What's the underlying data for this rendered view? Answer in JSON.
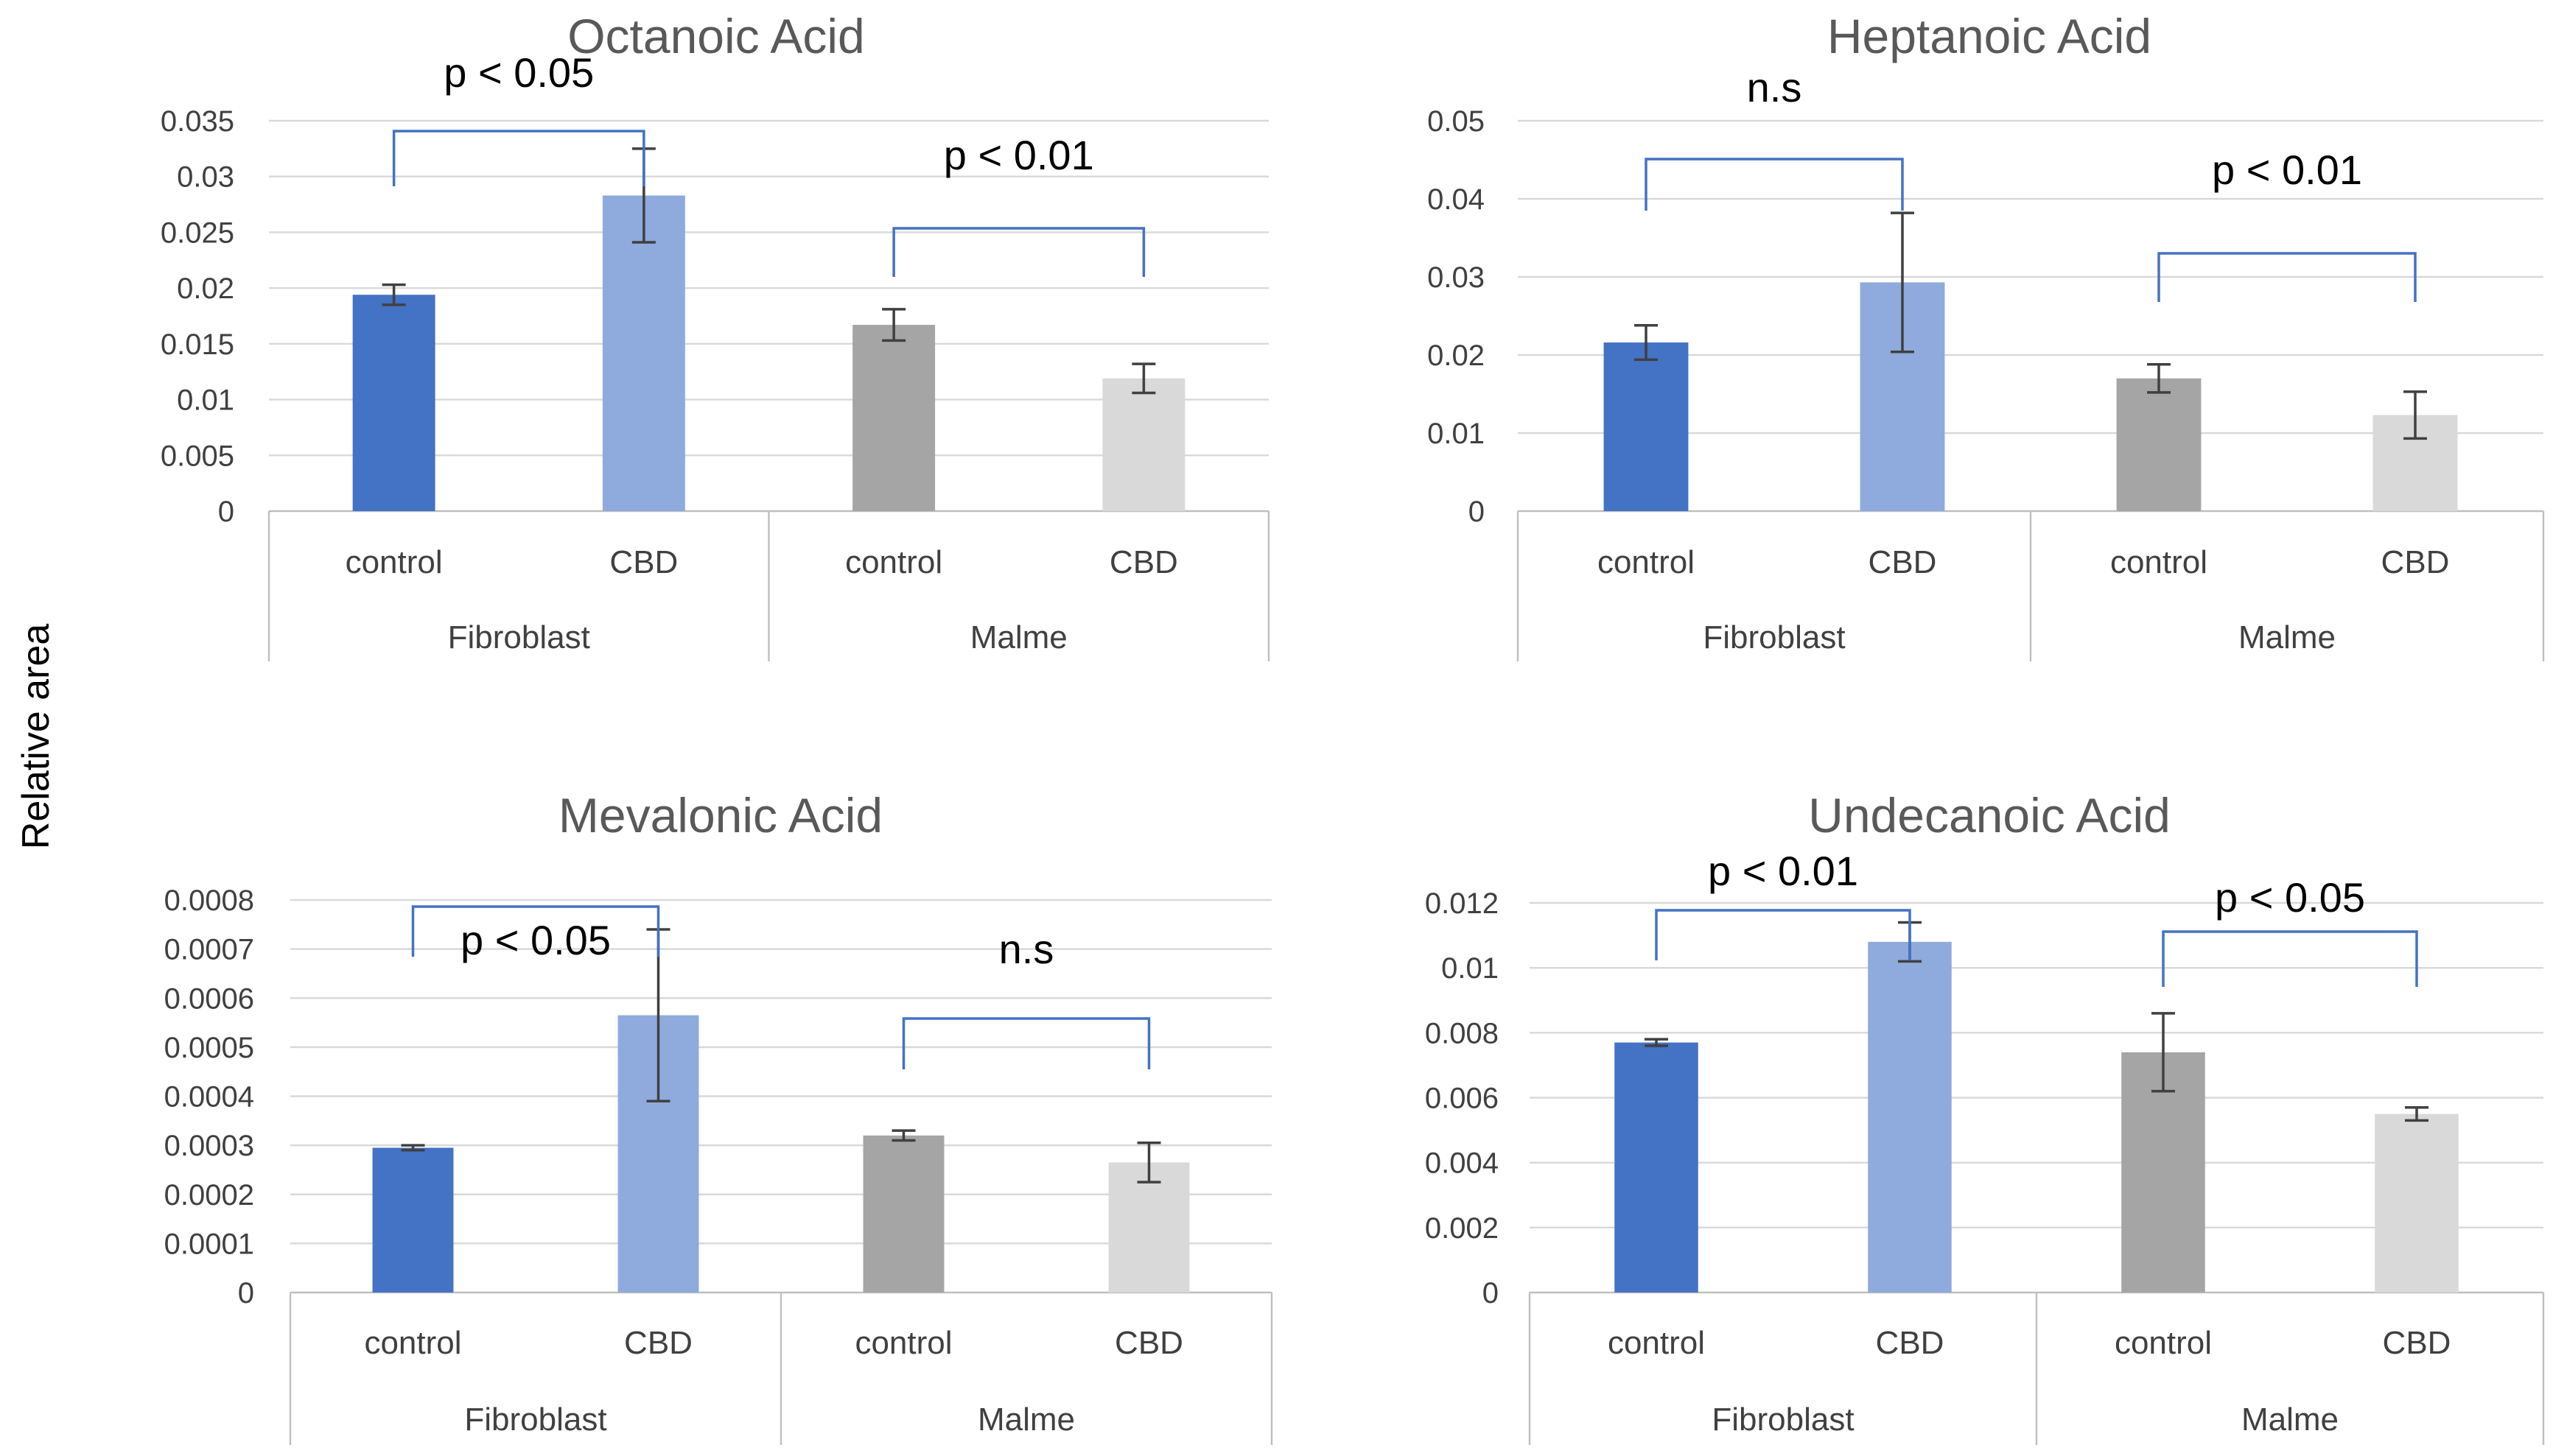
{
  "figure": {
    "ylabel": "Relative area",
    "colors": {
      "fibroblast_control": "#4472c4",
      "fibroblast_cbd": "#8faadc",
      "malme_control": "#a5a5a5",
      "malme_cbd": "#d9d9d9",
      "bracket": "#4472c4"
    }
  },
  "chart_data": [
    {
      "type": "bar",
      "title": "Octanoic Acid",
      "groups": [
        "Fibroblast",
        "Malme"
      ],
      "categories": [
        "control",
        "CBD",
        "control",
        "CBD"
      ],
      "values": [
        0.0194,
        0.0283,
        0.0167,
        0.0119
      ],
      "errors": [
        0.0009,
        0.0042,
        0.0014,
        0.0013
      ],
      "ylim": [
        0,
        0.035
      ],
      "yticks": [
        "0",
        "0.005",
        "0.01",
        "0.015",
        "0.02",
        "0.025",
        "0.03",
        "0.035"
      ],
      "grid": true,
      "annotations": [
        {
          "group": "Fibroblast",
          "text": "p < 0.05"
        },
        {
          "group": "Malme",
          "text": "p < 0.01"
        }
      ]
    },
    {
      "type": "bar",
      "title": "Heptanoic Acid",
      "groups": [
        "Fibroblast",
        "Malme"
      ],
      "categories": [
        "control",
        "CBD",
        "control",
        "CBD"
      ],
      "values": [
        0.0216,
        0.0293,
        0.017,
        0.0123
      ],
      "errors": [
        0.0022,
        0.0089,
        0.0018,
        0.003
      ],
      "ylim": [
        0,
        0.05
      ],
      "yticks": [
        "0",
        "0.01",
        "0.02",
        "0.03",
        "0.04",
        "0.05"
      ],
      "grid": true,
      "annotations": [
        {
          "group": "Fibroblast",
          "text": "n.s"
        },
        {
          "group": "Malme",
          "text": "p < 0.01"
        }
      ]
    },
    {
      "type": "bar",
      "title": "Mevalonic Acid",
      "groups": [
        "Fibroblast",
        "Malme"
      ],
      "categories": [
        "control",
        "CBD",
        "control",
        "CBD"
      ],
      "values": [
        0.000295,
        0.000565,
        0.00032,
        0.000265
      ],
      "errors": [
        5e-06,
        0.000175,
        1e-05,
        4e-05
      ],
      "ylim": [
        0,
        0.0008
      ],
      "yticks": [
        "0",
        "0.0001",
        "0.0002",
        "0.0003",
        "0.0004",
        "0.0005",
        "0.0006",
        "0.0007",
        "0.0008"
      ],
      "grid": true,
      "annotations": [
        {
          "group": "Fibroblast",
          "text": "p < 0.05"
        },
        {
          "group": "Malme",
          "text": "n.s"
        }
      ]
    },
    {
      "type": "bar",
      "title": "Undecanoic Acid",
      "groups": [
        "Fibroblast",
        "Malme"
      ],
      "categories": [
        "control",
        "CBD",
        "control",
        "CBD"
      ],
      "values": [
        0.0077,
        0.0108,
        0.0074,
        0.0055
      ],
      "errors": [
        0.0001,
        0.0006,
        0.0012,
        0.0002
      ],
      "ylim": [
        0,
        0.012
      ],
      "yticks": [
        "0",
        "0.002",
        "0.004",
        "0.006",
        "0.008",
        "0.01",
        "0.012"
      ],
      "grid": true,
      "annotations": [
        {
          "group": "Fibroblast",
          "text": "p < 0.01"
        },
        {
          "group": "Malme",
          "text": "p < 0.05"
        }
      ]
    }
  ]
}
